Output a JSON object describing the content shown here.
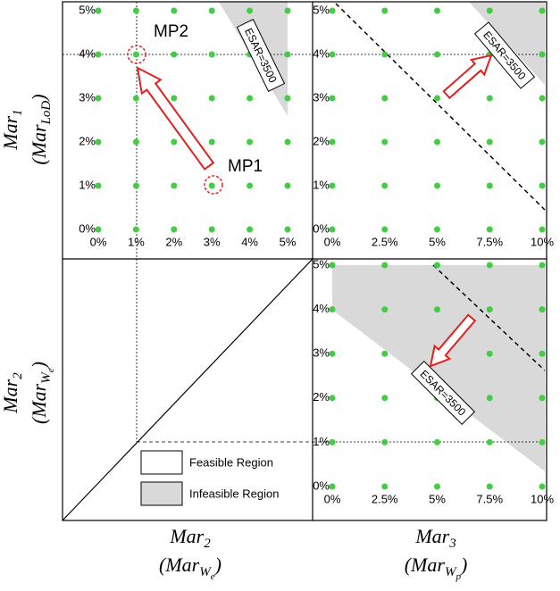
{
  "chart_data": [
    {
      "type": "scatter",
      "color": "#44cc44",
      "x": [
        0,
        0,
        0,
        0,
        0,
        0,
        1,
        1,
        1,
        1,
        1,
        1,
        2,
        2,
        2,
        2,
        2,
        2,
        3,
        3,
        3,
        3,
        3,
        3,
        4,
        4,
        4,
        4,
        4,
        4,
        5,
        5,
        5,
        5,
        5,
        5
      ],
      "y": [
        0,
        1,
        2,
        3,
        4,
        5,
        0,
        1,
        2,
        3,
        4,
        5,
        0,
        1,
        2,
        3,
        4,
        5,
        0,
        1,
        2,
        3,
        4,
        5,
        0,
        1,
        2,
        3,
        4,
        5,
        0,
        1,
        2,
        3,
        4,
        5
      ],
      "xlim": [
        0,
        5
      ],
      "ylim": [
        0,
        5
      ],
      "xticks": [
        {
          "value": 0,
          "label": "0%"
        },
        {
          "value": 1,
          "label": "1%"
        },
        {
          "value": 2,
          "label": "2%"
        },
        {
          "value": 3,
          "label": "3%"
        },
        {
          "value": 4,
          "label": "4%"
        },
        {
          "value": 5,
          "label": "5%"
        }
      ],
      "yticks": [
        {
          "value": 0,
          "label": "0%"
        },
        {
          "value": 1,
          "label": "1%"
        },
        {
          "value": 2,
          "label": "2%"
        },
        {
          "value": 3,
          "label": "3%"
        },
        {
          "value": 4,
          "label": "4%"
        },
        {
          "value": 5,
          "label": "5%"
        }
      ],
      "annotations": [
        "MP2",
        "MP1",
        "ESAR=3500"
      ]
    },
    {
      "type": "scatter",
      "color": "#44cc44",
      "x": [
        0,
        0,
        0,
        0,
        0,
        0,
        2.5,
        2.5,
        2.5,
        2.5,
        2.5,
        2.5,
        5,
        5,
        5,
        5,
        5,
        5,
        7.5,
        7.5,
        7.5,
        7.5,
        7.5,
        7.5,
        10,
        10,
        10,
        10,
        10,
        10
      ],
      "y": [
        0,
        1,
        2,
        3,
        4,
        5,
        0,
        1,
        2,
        3,
        4,
        5,
        0,
        1,
        2,
        3,
        4,
        5,
        0,
        1,
        2,
        3,
        4,
        5,
        0,
        1,
        2,
        3,
        4,
        5
      ],
      "xlim": [
        0,
        10
      ],
      "ylim": [
        0,
        5
      ],
      "xticks": [
        {
          "value": 0,
          "label": "0%"
        },
        {
          "value": 2.5,
          "label": "2.5%"
        },
        {
          "value": 5,
          "label": "5%"
        },
        {
          "value": 7.5,
          "label": "7.5%"
        },
        {
          "value": 10,
          "label": "10%"
        }
      ],
      "yticks": [
        {
          "value": 0,
          "label": "0%"
        },
        {
          "value": 1,
          "label": "1%"
        },
        {
          "value": 2,
          "label": "2%"
        },
        {
          "value": 3,
          "label": "3%"
        },
        {
          "value": 4,
          "label": "4%"
        },
        {
          "value": 5,
          "label": "5%"
        }
      ],
      "annotations": [
        "ESAR=3500"
      ]
    },
    {
      "type": "scatter",
      "color": "#44cc44",
      "x": [
        0,
        0,
        0,
        0,
        0,
        0,
        2.5,
        2.5,
        2.5,
        2.5,
        2.5,
        2.5,
        5,
        5,
        5,
        5,
        5,
        5,
        7.5,
        7.5,
        7.5,
        7.5,
        7.5,
        7.5,
        10,
        10,
        10,
        10,
        10,
        10
      ],
      "y": [
        0,
        1,
        2,
        3,
        4,
        5,
        0,
        1,
        2,
        3,
        4,
        5,
        0,
        1,
        2,
        3,
        4,
        5,
        0,
        1,
        2,
        3,
        4,
        5,
        0,
        1,
        2,
        3,
        4,
        5
      ],
      "xlim": [
        0,
        10
      ],
      "ylim": [
        0,
        5
      ],
      "xticks": [
        {
          "value": 0,
          "label": "0%"
        },
        {
          "value": 2.5,
          "label": "2.5%"
        },
        {
          "value": 5,
          "label": "5%"
        },
        {
          "value": 7.5,
          "label": "7.5%"
        },
        {
          "value": 10,
          "label": "10%"
        }
      ],
      "yticks": [
        {
          "value": 0,
          "label": "0%"
        },
        {
          "value": 1,
          "label": "1%"
        },
        {
          "value": 2,
          "label": "2%"
        },
        {
          "value": 3,
          "label": "3%"
        },
        {
          "value": 4,
          "label": "4%"
        },
        {
          "value": 5,
          "label": "5%"
        }
      ],
      "annotations": [
        "ESAR=3500"
      ]
    }
  ],
  "axis_labels": {
    "row1": [
      [
        {
          "t": "Mar"
        },
        {
          "t": "1",
          "sub": 1
        }
      ],
      [
        {
          "t": "(Mar"
        },
        {
          "t": "LoD",
          "sub": 1
        },
        {
          "t": ")"
        }
      ]
    ],
    "row2": [
      [
        {
          "t": "Mar"
        },
        {
          "t": "2",
          "sub": 1
        }
      ],
      [
        {
          "t": "(Mar"
        },
        {
          "t": "W",
          "sub": 1
        },
        {
          "t": "e",
          "sub": 2
        },
        {
          "t": ")"
        }
      ]
    ],
    "col1": [
      [
        {
          "t": "Mar"
        },
        {
          "t": "2",
          "sub": 1
        }
      ],
      [
        {
          "t": "(Mar"
        },
        {
          "t": "W",
          "sub": 1
        },
        {
          "t": "e",
          "sub": 2
        },
        {
          "t": ")"
        }
      ]
    ],
    "col2": [
      [
        {
          "t": "Mar"
        },
        {
          "t": "3",
          "sub": 1
        }
      ],
      [
        {
          "t": "(Mar"
        },
        {
          "t": "W",
          "sub": 1
        },
        {
          "t": "p",
          "sub": 2
        },
        {
          "t": ")"
        }
      ]
    ]
  },
  "legend": {
    "feasible": "Feasible Region",
    "infeasible": "Infeasible Region",
    "feasible_color": "#ffffff",
    "infeasible_color": "#d9d9d9"
  }
}
